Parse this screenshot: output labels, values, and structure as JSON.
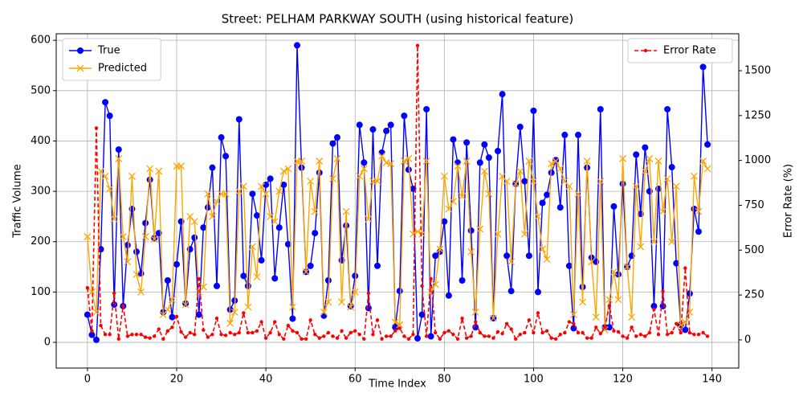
{
  "chart_data": {
    "type": "line",
    "title": "Street: PELHAM PARKWAY SOUTH (using historical feature)",
    "xlabel": "Time Index",
    "ylabel": "Traffic Volume",
    "y2label": "Error Rate (%)",
    "x": [
      0,
      1,
      2,
      3,
      4,
      5,
      6,
      7,
      8,
      9,
      10,
      11,
      12,
      13,
      14,
      15,
      16,
      17,
      18,
      19,
      20,
      21,
      22,
      23,
      24,
      25,
      26,
      27,
      28,
      29,
      30,
      31,
      32,
      33,
      34,
      35,
      36,
      37,
      38,
      39,
      40,
      41,
      42,
      43,
      44,
      45,
      46,
      47,
      48,
      49,
      50,
      51,
      52,
      53,
      54,
      55,
      56,
      57,
      58,
      59,
      60,
      61,
      62,
      63,
      64,
      65,
      66,
      67,
      68,
      69,
      70,
      71,
      72,
      73,
      74,
      75,
      76,
      77,
      78,
      79,
      80,
      81,
      82,
      83,
      84,
      85,
      86,
      87,
      88,
      89,
      90,
      91,
      92,
      93,
      94,
      95,
      96,
      97,
      98,
      99,
      100,
      101,
      102,
      103,
      104,
      105,
      106,
      107,
      108,
      109,
      110,
      111,
      112,
      113,
      114,
      115,
      116,
      117,
      118,
      119,
      120,
      121,
      122,
      123,
      124,
      125,
      126,
      127,
      128,
      129,
      130,
      131,
      132,
      133,
      134,
      135,
      136,
      137,
      138,
      139
    ],
    "series": [
      {
        "name": "True",
        "color": "#0000ff",
        "marker": "o",
        "linestyle": "solid",
        "values": [
          55,
          15,
          5,
          185,
          477,
          450,
          75,
          383,
          72,
          193,
          265,
          180,
          137,
          237,
          323,
          207,
          217,
          60,
          123,
          50,
          155,
          240,
          77,
          185,
          208,
          55,
          228,
          268,
          347,
          112,
          407,
          370,
          65,
          83,
          443,
          132,
          112,
          295,
          252,
          163,
          313,
          325,
          127,
          228,
          313,
          195,
          47,
          590,
          347,
          140,
          152,
          217,
          337,
          53,
          123,
          395,
          407,
          163,
          232,
          72,
          132,
          432,
          357,
          68,
          423,
          152,
          377,
          420,
          432,
          30,
          102,
          450,
          343,
          305,
          8,
          55,
          463,
          12,
          172,
          180,
          240,
          93,
          403,
          357,
          123,
          397,
          222,
          30,
          357,
          393,
          367,
          48,
          380,
          493,
          172,
          102,
          315,
          428,
          320,
          172,
          460,
          100,
          277,
          293,
          337,
          362,
          268,
          412,
          152,
          28,
          412,
          110,
          347,
          168,
          160,
          463,
          30,
          30,
          270,
          135,
          315,
          150,
          172,
          373,
          255,
          387,
          300,
          72,
          305,
          72,
          463,
          348,
          157,
          35,
          25,
          97,
          265,
          220,
          547,
          393
        ]
      },
      {
        "name": "Predicted",
        "color": "#ffa500",
        "marker": "x",
        "linestyle": "solid",
        "values": [
          210,
          100,
          60,
          340,
          330,
          305,
          245,
          365,
          210,
          160,
          330,
          135,
          100,
          210,
          345,
          205,
          340,
          55,
          65,
          85,
          350,
          350,
          75,
          250,
          240,
          100,
          110,
          295,
          250,
          280,
          295,
          295,
          38,
          60,
          300,
          310,
          70,
          190,
          130,
          310,
          295,
          250,
          240,
          300,
          340,
          345,
          70,
          360,
          360,
          140,
          320,
          260,
          360,
          60,
          80,
          325,
          365,
          80,
          260,
          70,
          100,
          330,
          345,
          245,
          320,
          320,
          370,
          357,
          355,
          40,
          35,
          360,
          365,
          215,
          220,
          215,
          360,
          100,
          115,
          185,
          330,
          265,
          280,
          350,
          290,
          360,
          180,
          60,
          225,
          340,
          295,
          48,
          215,
          330,
          320,
          160,
          315,
          340,
          215,
          360,
          320,
          250,
          185,
          165,
          355,
          360,
          345,
          320,
          310,
          55,
          295,
          80,
          360,
          160,
          50,
          320,
          25,
          85,
          140,
          85,
          365,
          150,
          50,
          310,
          190,
          340,
          365,
          200,
          360,
          260,
          325,
          200,
          310,
          35,
          40,
          60,
          330,
          260,
          360,
          345
        ]
      },
      {
        "name": "Error Rate",
        "color": "#ff0000",
        "marker": ".",
        "linestyle": "dashed",
        "axis": "y2",
        "values": [
          290,
          50,
          1180,
          80,
          30,
          30,
          260,
          5,
          190,
          20,
          30,
          30,
          30,
          15,
          10,
          20,
          60,
          5,
          50,
          70,
          130,
          45,
          15,
          40,
          30,
          340,
          55,
          15,
          30,
          120,
          30,
          25,
          40,
          30,
          40,
          150,
          40,
          40,
          50,
          100,
          10,
          40,
          100,
          30,
          5,
          80,
          50,
          40,
          5,
          5,
          110,
          30,
          10,
          20,
          40,
          20,
          10,
          50,
          10,
          40,
          50,
          30,
          5,
          260,
          30,
          110,
          5,
          20,
          20,
          50,
          65,
          20,
          5,
          30,
          1640,
          300,
          20,
          340,
          40,
          5,
          40,
          50,
          30,
          5,
          120,
          10,
          20,
          100,
          40,
          20,
          20,
          10,
          45,
          35,
          90,
          60,
          5,
          30,
          40,
          110,
          40,
          150,
          40,
          50,
          10,
          5,
          30,
          40,
          100,
          90,
          40,
          40,
          10,
          10,
          70,
          35,
          70,
          190,
          50,
          45,
          20,
          10,
          70,
          20,
          30,
          20,
          40,
          170,
          30,
          270,
          30,
          40,
          90,
          40,
          400,
          40,
          30,
          30,
          40,
          20
        ]
      }
    ],
    "xlim": [
      -7,
      146
    ],
    "xticks": [
      0,
      20,
      40,
      60,
      80,
      100,
      120,
      140
    ],
    "ylim": [
      -51,
      613
    ],
    "yticks": [
      0,
      100,
      200,
      300,
      400,
      500,
      600
    ],
    "y2lim": [
      -157,
      1706
    ],
    "y2ticks": [
      0,
      250,
      500,
      750,
      1000,
      1250,
      1500
    ],
    "grid": true,
    "legend": "upper left",
    "y2_legend": "upper right"
  }
}
